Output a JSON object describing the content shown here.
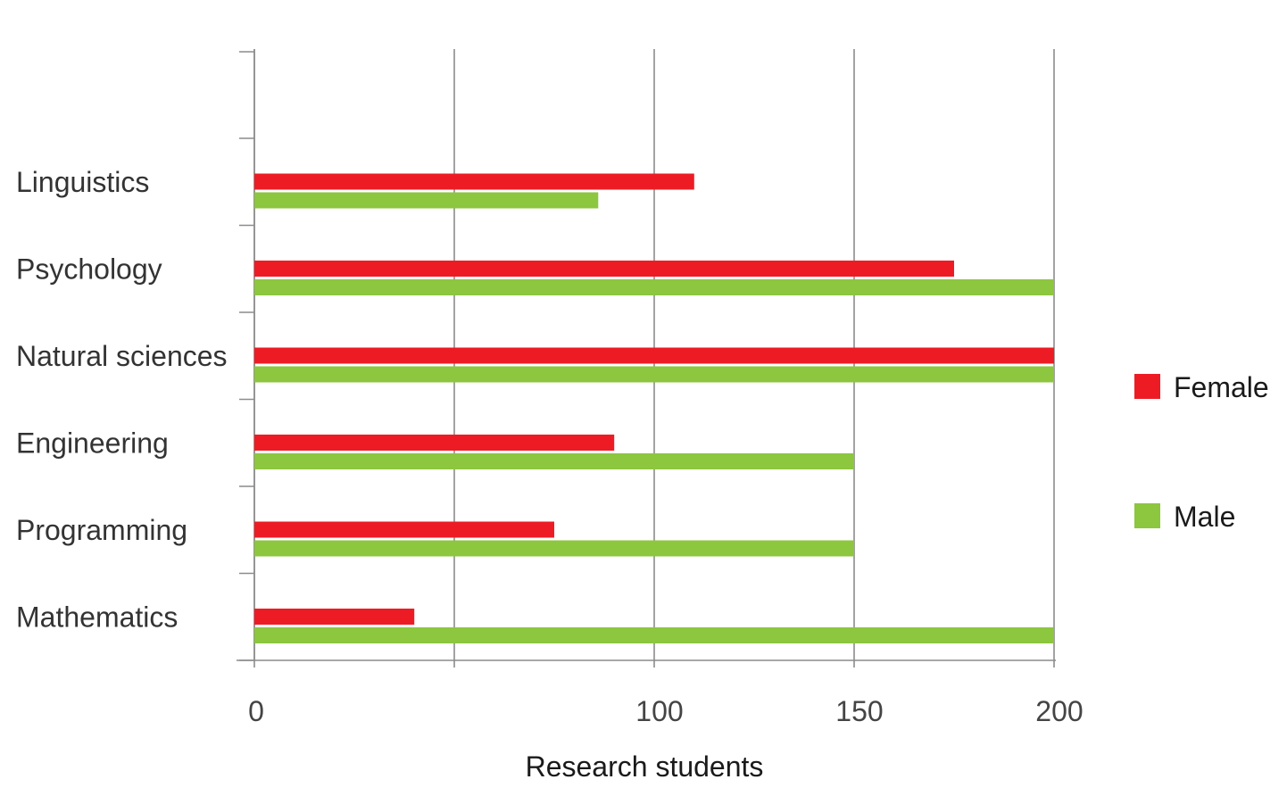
{
  "chart_data": {
    "type": "bar",
    "orientation": "horizontal",
    "categories": [
      "Linguistics",
      "Psychology",
      "Natural sciences",
      "Engineering",
      "Programming",
      "Mathematics"
    ],
    "series": [
      {
        "name": "Female",
        "color": "#ed1c24",
        "values": [
          110,
          175,
          200,
          90,
          75,
          40
        ]
      },
      {
        "name": "Male",
        "color": "#8dc63f",
        "values": [
          86,
          200,
          200,
          150,
          150,
          200
        ]
      }
    ],
    "xlabel": "Research students",
    "ylabel": "",
    "title": "",
    "xlim": [
      0,
      200
    ],
    "x_gridlines": [
      0,
      50,
      100,
      150,
      200
    ],
    "x_tick_labels": [
      "0",
      "100",
      "150",
      "200"
    ],
    "grid": true,
    "legend_position": "right"
  }
}
